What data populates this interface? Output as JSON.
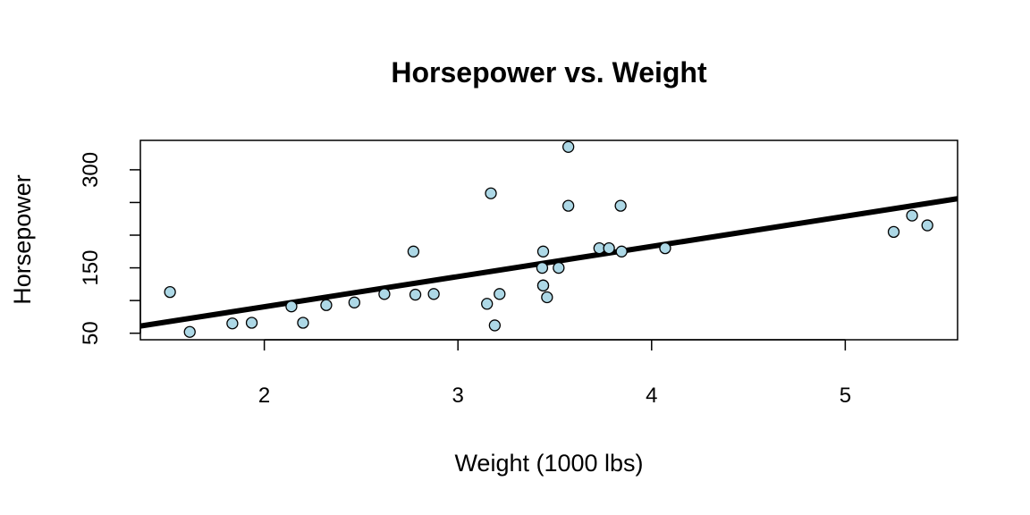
{
  "chart_data": {
    "type": "scatter",
    "title": "Horsepower vs. Weight",
    "xlabel": "Weight (1000 lbs)",
    "ylabel": "Horsepower",
    "xlim": [
      1.36,
      5.58
    ],
    "ylim": [
      40,
      345
    ],
    "x_ticks": [
      2,
      3,
      4,
      5
    ],
    "x_tick_labels": [
      "2",
      "3",
      "4",
      "5"
    ],
    "y_ticks": [
      50,
      100,
      150,
      200,
      250,
      300
    ],
    "y_tick_labels": [
      "50",
      "",
      "150",
      "",
      "",
      "300"
    ],
    "grid": false,
    "point_color": "#add8e6",
    "point_stroke": "#000000",
    "line_color": "#000000",
    "points": [
      {
        "x": 2.62,
        "y": 110
      },
      {
        "x": 2.875,
        "y": 110
      },
      {
        "x": 2.32,
        "y": 93
      },
      {
        "x": 3.215,
        "y": 110
      },
      {
        "x": 3.44,
        "y": 175
      },
      {
        "x": 3.46,
        "y": 105
      },
      {
        "x": 3.57,
        "y": 245
      },
      {
        "x": 3.19,
        "y": 62
      },
      {
        "x": 3.15,
        "y": 95
      },
      {
        "x": 3.44,
        "y": 123
      },
      {
        "x": 3.44,
        "y": 123
      },
      {
        "x": 4.07,
        "y": 180
      },
      {
        "x": 3.73,
        "y": 180
      },
      {
        "x": 3.78,
        "y": 180
      },
      {
        "x": 5.25,
        "y": 205
      },
      {
        "x": 5.424,
        "y": 215
      },
      {
        "x": 5.345,
        "y": 230
      },
      {
        "x": 2.2,
        "y": 66
      },
      {
        "x": 1.615,
        "y": 52
      },
      {
        "x": 1.835,
        "y": 65
      },
      {
        "x": 2.465,
        "y": 97
      },
      {
        "x": 3.52,
        "y": 150
      },
      {
        "x": 3.435,
        "y": 150
      },
      {
        "x": 3.84,
        "y": 245
      },
      {
        "x": 3.845,
        "y": 175
      },
      {
        "x": 1.935,
        "y": 66
      },
      {
        "x": 2.14,
        "y": 91
      },
      {
        "x": 1.513,
        "y": 113
      },
      {
        "x": 3.17,
        "y": 264
      },
      {
        "x": 2.77,
        "y": 175
      },
      {
        "x": 3.57,
        "y": 335
      },
      {
        "x": 2.78,
        "y": 109
      }
    ],
    "fit_line": {
      "intercept": -1.82,
      "slope": 46.16
    }
  }
}
